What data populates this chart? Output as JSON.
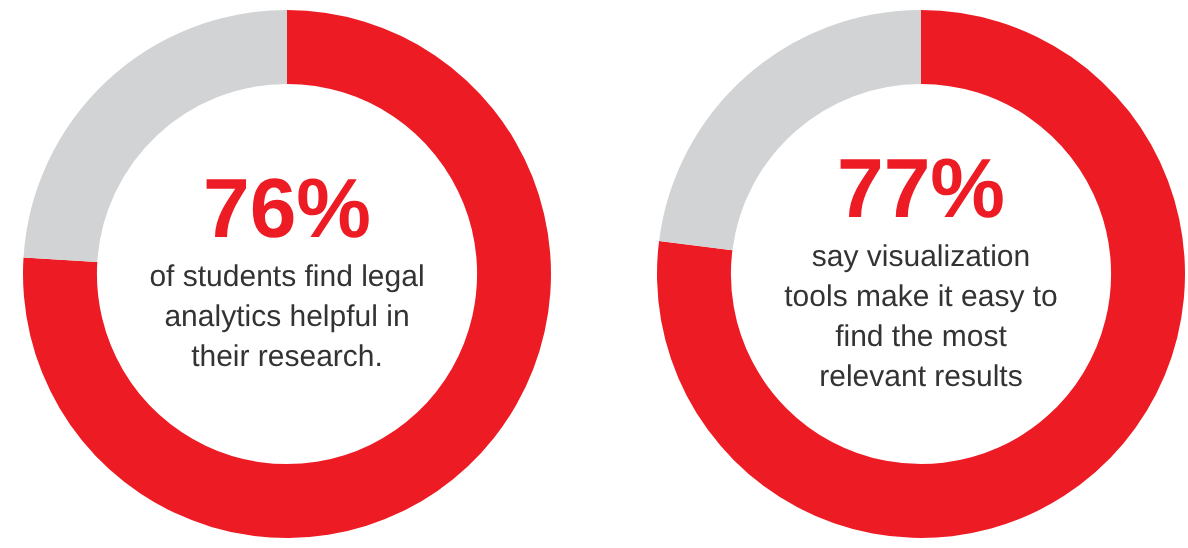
{
  "chart_data": [
    {
      "type": "donut",
      "categories": [
        null,
        null
      ],
      "values": [
        76,
        24
      ],
      "colors": [
        "#ed1c24",
        "#d1d3d4"
      ],
      "value_labels": [
        "76%",
        null
      ],
      "annotations": [
        "of students find legal analytics helpful in their research."
      ],
      "legend": false
    },
    {
      "type": "donut",
      "categories": [
        null,
        null
      ],
      "values": [
        77,
        23
      ],
      "colors": [
        "#ed1c24",
        "#d1d3d4"
      ],
      "value_labels": [
        "77%",
        null
      ],
      "annotations": [
        "say visualization tools make it easy to find the most relevant results"
      ],
      "legend": false
    }
  ]
}
